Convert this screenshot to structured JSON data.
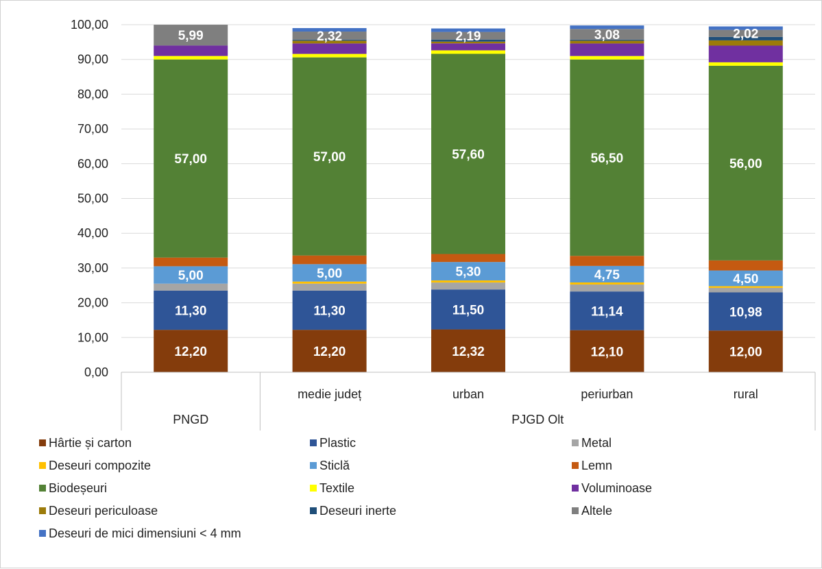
{
  "chart_data": {
    "type": "bar",
    "stacked": true,
    "ylim": [
      0,
      100
    ],
    "yticks": [
      "0,00",
      "10,00",
      "20,00",
      "30,00",
      "40,00",
      "50,00",
      "60,00",
      "70,00",
      "80,00",
      "90,00",
      "100,00"
    ],
    "grid": true,
    "legend_position": "bottom",
    "groups": [
      {
        "label": "PNGD",
        "span": 1
      },
      {
        "label": "PJGD Olt",
        "span": 4
      }
    ],
    "categories": [
      "",
      "medie județ",
      "urban",
      "periurban",
      "rural"
    ],
    "series": [
      {
        "name": "Hârtie și carton",
        "color": "#843c0c",
        "values": [
          12.2,
          12.2,
          12.32,
          12.1,
          12.0
        ],
        "labels": [
          "12,20",
          "12,20",
          "12,32",
          "12,10",
          "12,00"
        ]
      },
      {
        "name": "Plastic",
        "color": "#2f5597",
        "values": [
          11.3,
          11.3,
          11.5,
          11.14,
          10.98
        ],
        "labels": [
          "11,30",
          "11,30",
          "11,50",
          "11,14",
          "10,98"
        ]
      },
      {
        "name": "Metal",
        "color": "#a5a5a5",
        "values": [
          2.0,
          2.0,
          2.0,
          2.0,
          1.3
        ],
        "labels": null
      },
      {
        "name": "Deseuri compozite",
        "color": "#ffc000",
        "values": [
          0.0,
          0.6,
          0.6,
          0.6,
          0.5
        ],
        "labels": null
      },
      {
        "name": "Sticlă",
        "color": "#5b9bd5",
        "values": [
          5.0,
          5.0,
          5.3,
          4.75,
          4.5
        ],
        "labels": [
          "5,00",
          "5,00",
          "5,30",
          "4,75",
          "4,50"
        ]
      },
      {
        "name": "Lemn",
        "color": "#c55a11",
        "values": [
          2.5,
          2.5,
          2.3,
          2.9,
          2.9
        ],
        "labels": null
      },
      {
        "name": "Biodeșeuri",
        "color": "#538135",
        "values": [
          57.0,
          57.0,
          57.6,
          56.5,
          56.0
        ],
        "labels": [
          "57,00",
          "57,00",
          "57,60",
          "56,50",
          "56,00"
        ]
      },
      {
        "name": "Textile",
        "color": "#ffff00",
        "values": [
          1.0,
          1.0,
          1.0,
          1.0,
          1.0
        ],
        "labels": null
      },
      {
        "name": "Voluminoase",
        "color": "#7030a0",
        "values": [
          3.0,
          3.0,
          2.0,
          3.6,
          4.8
        ],
        "labels": null
      },
      {
        "name": "Deseuri periculoase",
        "color": "#9c7b0a",
        "values": [
          0.0,
          0.8,
          0.5,
          0.8,
          1.5
        ],
        "labels": null
      },
      {
        "name": "Deseuri inerte",
        "color": "#1f4e79",
        "values": [
          0.0,
          0.3,
          0.6,
          0.3,
          1.0
        ],
        "labels": null
      },
      {
        "name": "Altele",
        "color": "#7f7f7f",
        "values": [
          5.99,
          2.32,
          2.19,
          3.08,
          2.02
        ],
        "labels": [
          "5,99",
          "2,32",
          "2,19",
          "3,08",
          "2,02"
        ]
      },
      {
        "name": "Deseuri de mici dimensiuni < 4 mm",
        "color": "#4472c4",
        "values": [
          0.0,
          1.0,
          1.0,
          1.0,
          1.0
        ],
        "labels": null
      }
    ]
  }
}
